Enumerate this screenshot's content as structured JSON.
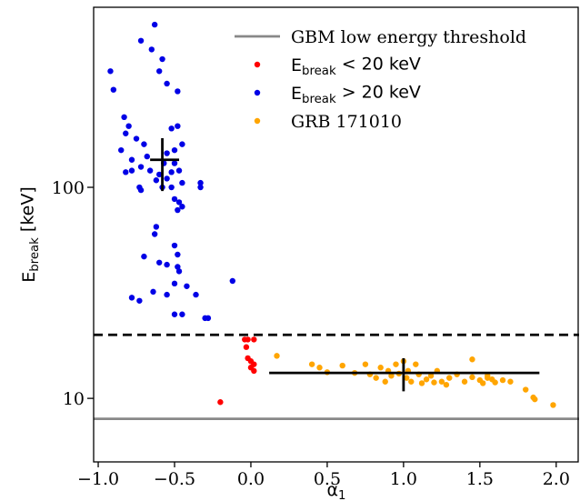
{
  "chart_data": {
    "type": "scatter",
    "x_label": {
      "main": "α",
      "sub": "1"
    },
    "y_label": {
      "main": "E",
      "sub": "break",
      "rest": " [keV]"
    },
    "xlim": [
      -1.03,
      2.15
    ],
    "ylim": [
      5,
      713
    ],
    "log_y": true,
    "xticks": [
      {
        "value": -1,
        "label": "−1.0"
      },
      {
        "value": -0.5,
        "label": "−0.5"
      },
      {
        "value": 0,
        "label": "0.0"
      },
      0.5,
      {
        "value": 1,
        "label": "1.0"
      },
      1.5,
      {
        "value": 2,
        "label": "2.0"
      }
    ],
    "yticks": [
      10,
      100
    ],
    "legend": "upper right",
    "hlines": [
      {
        "name": "GBM low energy threshold",
        "y": 8,
        "color": "#888888",
        "style": "solid"
      },
      {
        "y": 20,
        "color": "#000000",
        "style": "dashed"
      }
    ],
    "series": [
      {
        "name": {
          "main": "E",
          "sub": "break",
          "rest": " < 20 keV"
        },
        "color": "#ff0000",
        "x": [
          -0.04,
          -0.02,
          0.02,
          -0.03,
          -0.02,
          0.0,
          0.02,
          0.0,
          0.02,
          -0.2
        ],
        "values": [
          19,
          19,
          19,
          17.5,
          15.5,
          15,
          14.5,
          14,
          13.5,
          9.6
        ]
      },
      {
        "name": {
          "main": "E",
          "sub": "break",
          "rest": " > 20 keV"
        },
        "color": "#0000e6",
        "x": [
          -0.92,
          -0.9,
          -0.72,
          -0.63,
          -0.65,
          -0.58,
          -0.55,
          -0.48,
          -0.6,
          -0.83,
          -0.8,
          -0.75,
          -0.82,
          -0.85,
          -0.78,
          -0.7,
          -0.68,
          -0.72,
          -0.78,
          -0.82,
          -0.73,
          -0.72,
          -0.66,
          -0.6,
          -0.62,
          -0.57,
          -0.55,
          -0.52,
          -0.5,
          -0.47,
          -0.45,
          -0.48,
          -0.52,
          -0.45,
          -0.5,
          -0.55,
          -0.58,
          -0.52,
          -0.47,
          -0.48,
          -0.5,
          -0.62,
          -0.63,
          -0.7,
          -0.6,
          -0.55,
          -0.48,
          -0.47,
          -0.5,
          -0.48,
          -0.78,
          -0.73,
          -0.64,
          -0.55,
          -0.5,
          -0.42,
          -0.36,
          -0.5,
          -0.45,
          -0.3,
          -0.28,
          -0.12,
          -0.33,
          -0.33,
          -0.45
        ],
        "values": [
          355,
          290,
          495,
          590,
          450,
          405,
          310,
          285,
          355,
          215,
          195,
          170,
          180,
          150,
          135,
          160,
          140,
          125,
          120,
          118,
          100,
          97,
          120,
          115,
          108,
          130,
          145,
          118,
          130,
          120,
          105,
          195,
          190,
          160,
          150,
          110,
          100,
          100,
          85,
          78,
          88,
          65,
          60,
          47,
          44,
          43,
          42,
          40,
          53,
          48,
          30,
          29,
          32,
          31,
          35,
          34,
          31,
          25,
          25,
          24,
          24,
          36,
          105,
          100,
          81
        ]
      },
      {
        "name": "GRB 171010",
        "color": "#ffa500",
        "x": [
          0.17,
          0.4,
          0.45,
          0.5,
          0.6,
          0.68,
          0.75,
          0.78,
          0.82,
          0.85,
          0.88,
          0.9,
          0.92,
          0.95,
          0.97,
          1.0,
          1.02,
          1.03,
          1.05,
          1.08,
          1.1,
          1.12,
          1.15,
          1.18,
          1.2,
          1.22,
          1.25,
          1.28,
          1.3,
          1.35,
          1.4,
          1.45,
          1.5,
          1.52,
          1.55,
          1.6,
          1.65,
          1.7,
          1.8,
          1.85,
          1.86,
          1.98,
          1.55,
          1.58,
          1.45
        ],
        "values": [
          15.9,
          14.5,
          14,
          13.3,
          14.3,
          13.2,
          14.5,
          13,
          12.5,
          14,
          12,
          13.5,
          12.8,
          14.5,
          13.1,
          15,
          12.5,
          13.5,
          12,
          14.5,
          13,
          11.8,
          12.3,
          12.8,
          11.9,
          13.5,
          12,
          11.6,
          12.5,
          13,
          12,
          12.6,
          12.2,
          11.8,
          12.5,
          11.9,
          12.2,
          12,
          11,
          10.1,
          9.9,
          9.3,
          12.8,
          12.3,
          15.3
        ]
      }
    ],
    "error_bars": [
      {
        "x": -0.58,
        "y": 135,
        "x_range": [
          -0.66,
          -0.47
        ],
        "y_range": [
          96,
          171
        ],
        "color": "#000000"
      },
      {
        "x": 1.0,
        "y": 13.2,
        "x_range": [
          0.12,
          1.89
        ],
        "y_range": [
          10.8,
          15.5
        ],
        "color": "#000000"
      }
    ]
  }
}
